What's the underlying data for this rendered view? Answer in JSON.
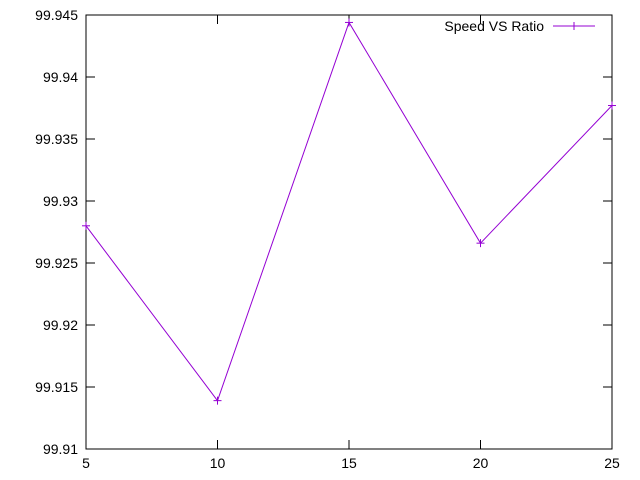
{
  "chart_data": {
    "type": "line",
    "title": "",
    "xlabel": "",
    "ylabel": "",
    "x": [
      5,
      10,
      15,
      20,
      25
    ],
    "series": [
      {
        "name": "Speed VS Ratio",
        "values": [
          99.928,
          99.9139,
          99.9444,
          99.9266,
          99.9377
        ],
        "color": "#9400d3",
        "marker": "plus"
      }
    ],
    "xlim": [
      5,
      25
    ],
    "ylim": [
      99.91,
      99.945
    ],
    "xticks": [
      5,
      10,
      15,
      20,
      25
    ],
    "xtick_labels": [
      "5",
      "10",
      "15",
      "20",
      "25"
    ],
    "yticks": [
      99.91,
      99.915,
      99.92,
      99.925,
      99.93,
      99.935,
      99.94,
      99.945
    ],
    "ytick_labels": [
      "99.91",
      "99.915",
      "99.92",
      "99.925",
      "99.93",
      "99.935",
      "99.94",
      "99.945"
    ],
    "grid": false,
    "legend_position": "top-right"
  }
}
